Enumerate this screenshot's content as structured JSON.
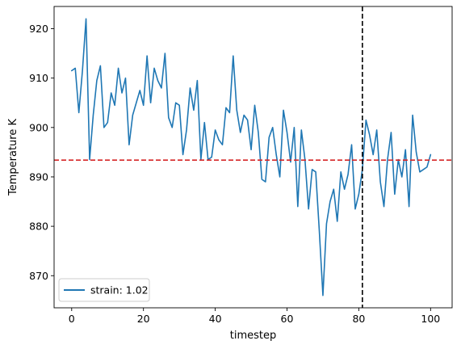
{
  "chart_data": {
    "type": "line",
    "title": "",
    "xlabel": "timestep",
    "ylabel": "Temperature K",
    "xlim": [
      -4.9,
      106.0
    ],
    "ylim": [
      863.5,
      924.5
    ],
    "xticks": [
      0,
      20,
      40,
      60,
      80,
      100
    ],
    "xtick_labels": [
      "0",
      "20",
      "40",
      "60",
      "80",
      "100"
    ],
    "yticks": [
      870,
      880,
      890,
      900,
      910,
      920
    ],
    "ytick_labels": [
      "870",
      "880",
      "890",
      "900",
      "910",
      "920"
    ],
    "grid": false,
    "legend_position": "lower-left",
    "series": [
      {
        "name": "strain: 1.02",
        "color": "#1f77b4",
        "x": [
          0,
          1,
          2,
          3,
          4,
          5,
          6,
          7,
          8,
          9,
          10,
          11,
          12,
          13,
          14,
          15,
          16,
          17,
          18,
          19,
          20,
          21,
          22,
          23,
          24,
          25,
          26,
          27,
          28,
          29,
          30,
          31,
          32,
          33,
          34,
          35,
          36,
          37,
          38,
          39,
          40,
          41,
          42,
          43,
          44,
          45,
          46,
          47,
          48,
          49,
          50,
          51,
          52,
          53,
          54,
          55,
          56,
          57,
          58,
          59,
          60,
          61,
          62,
          63,
          64,
          65,
          66,
          67,
          68,
          69,
          70,
          71,
          72,
          73,
          74,
          75,
          76,
          77,
          78,
          79,
          80,
          81,
          82,
          83,
          84,
          85,
          86,
          87,
          88,
          89,
          90,
          91,
          92,
          93,
          94,
          95,
          96,
          97,
          98,
          99,
          100
        ],
        "y": [
          911.5,
          912.0,
          903.0,
          911.5,
          922.0,
          893.5,
          902.5,
          909.5,
          912.5,
          900.0,
          901.0,
          907.0,
          904.5,
          912.0,
          907.0,
          910.0,
          896.5,
          902.5,
          905.0,
          907.5,
          904.5,
          914.5,
          905.0,
          912.0,
          909.5,
          908.0,
          915.0,
          902.0,
          900.0,
          905.0,
          904.5,
          894.5,
          899.5,
          908.0,
          903.5,
          909.5,
          893.5,
          901.0,
          893.5,
          894.0,
          899.5,
          897.5,
          896.5,
          904.0,
          903.0,
          914.5,
          903.5,
          899.0,
          902.5,
          901.5,
          895.5,
          904.5,
          899.0,
          889.5,
          889.0,
          898.0,
          900.0,
          894.5,
          890.0,
          903.5,
          899.0,
          893.0,
          900.0,
          884.0,
          899.5,
          893.5,
          883.5,
          891.5,
          891.0,
          879.0,
          866.0,
          880.5,
          885.0,
          887.5,
          881.0,
          891.0,
          887.5,
          890.5,
          896.5,
          883.5,
          886.5,
          891.5,
          901.5,
          898.5,
          894.5,
          899.5,
          889.0,
          884.0,
          893.5,
          899.0,
          886.5,
          893.5,
          890.0,
          895.5,
          884.0,
          902.5,
          895.0,
          891.0,
          891.5,
          892.0,
          894.5
        ]
      }
    ],
    "reference_lines": [
      {
        "orientation": "horizontal",
        "value": 893.4,
        "color": "#d62728",
        "style": "dashed"
      },
      {
        "orientation": "vertical",
        "value": 81,
        "color": "#000000",
        "style": "dashed"
      }
    ]
  }
}
